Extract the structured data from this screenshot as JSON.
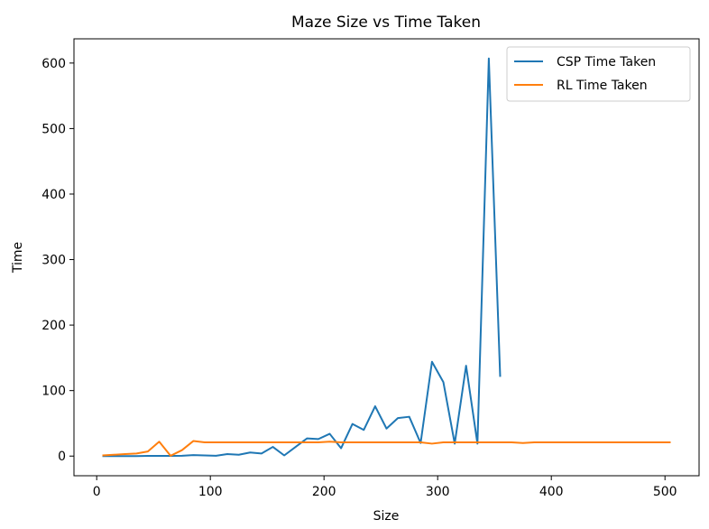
{
  "chart_data": {
    "type": "line",
    "title": "Maze Size vs Time Taken",
    "xlabel": "Size",
    "ylabel": "Time",
    "xlim": [
      -20,
      530
    ],
    "ylim": [
      -30,
      637
    ],
    "xticks": [
      0,
      100,
      200,
      300,
      400,
      500
    ],
    "yticks": [
      0,
      100,
      200,
      300,
      400,
      500,
      600
    ],
    "grid": false,
    "legend_position": "top-right",
    "series": [
      {
        "name": "CSP Time Taken",
        "color": "#1f77b4",
        "x": [
          5,
          15,
          25,
          35,
          45,
          55,
          65,
          75,
          85,
          95,
          105,
          115,
          125,
          135,
          145,
          155,
          165,
          175,
          185,
          195,
          205,
          215,
          225,
          235,
          245,
          255,
          265,
          275,
          285,
          295,
          305,
          315,
          325,
          335,
          345,
          355
        ],
        "values": [
          0,
          0,
          0,
          0,
          0.3,
          0.3,
          0.3,
          0.5,
          1.5,
          1,
          0.5,
          3,
          2,
          5.5,
          4,
          14,
          1,
          14,
          27,
          26,
          34,
          12,
          49,
          40,
          76,
          42,
          58,
          60,
          20,
          144,
          113,
          19,
          138,
          19,
          607,
          121
        ]
      },
      {
        "name": "RL Time Taken",
        "color": "#ff7f0e",
        "x": [
          5,
          15,
          25,
          35,
          45,
          55,
          65,
          75,
          85,
          95,
          105,
          115,
          125,
          135,
          145,
          155,
          165,
          175,
          185,
          195,
          205,
          215,
          225,
          235,
          245,
          255,
          265,
          275,
          285,
          295,
          305,
          315,
          325,
          335,
          345,
          355,
          365,
          375,
          385,
          395,
          405,
          415,
          425,
          435,
          445,
          455,
          465,
          475,
          485,
          495,
          505
        ],
        "values": [
          1,
          2,
          3,
          4,
          7,
          22,
          0.5,
          9,
          23,
          21,
          21,
          21,
          21,
          21,
          21,
          21,
          21,
          21,
          21,
          21,
          22,
          21,
          21,
          21,
          21,
          21,
          21,
          21,
          21,
          19,
          21,
          21,
          21,
          21,
          21,
          21,
          21,
          20,
          21,
          21,
          21,
          21,
          21,
          21,
          21,
          21,
          21,
          21,
          21,
          21,
          21
        ]
      }
    ]
  }
}
